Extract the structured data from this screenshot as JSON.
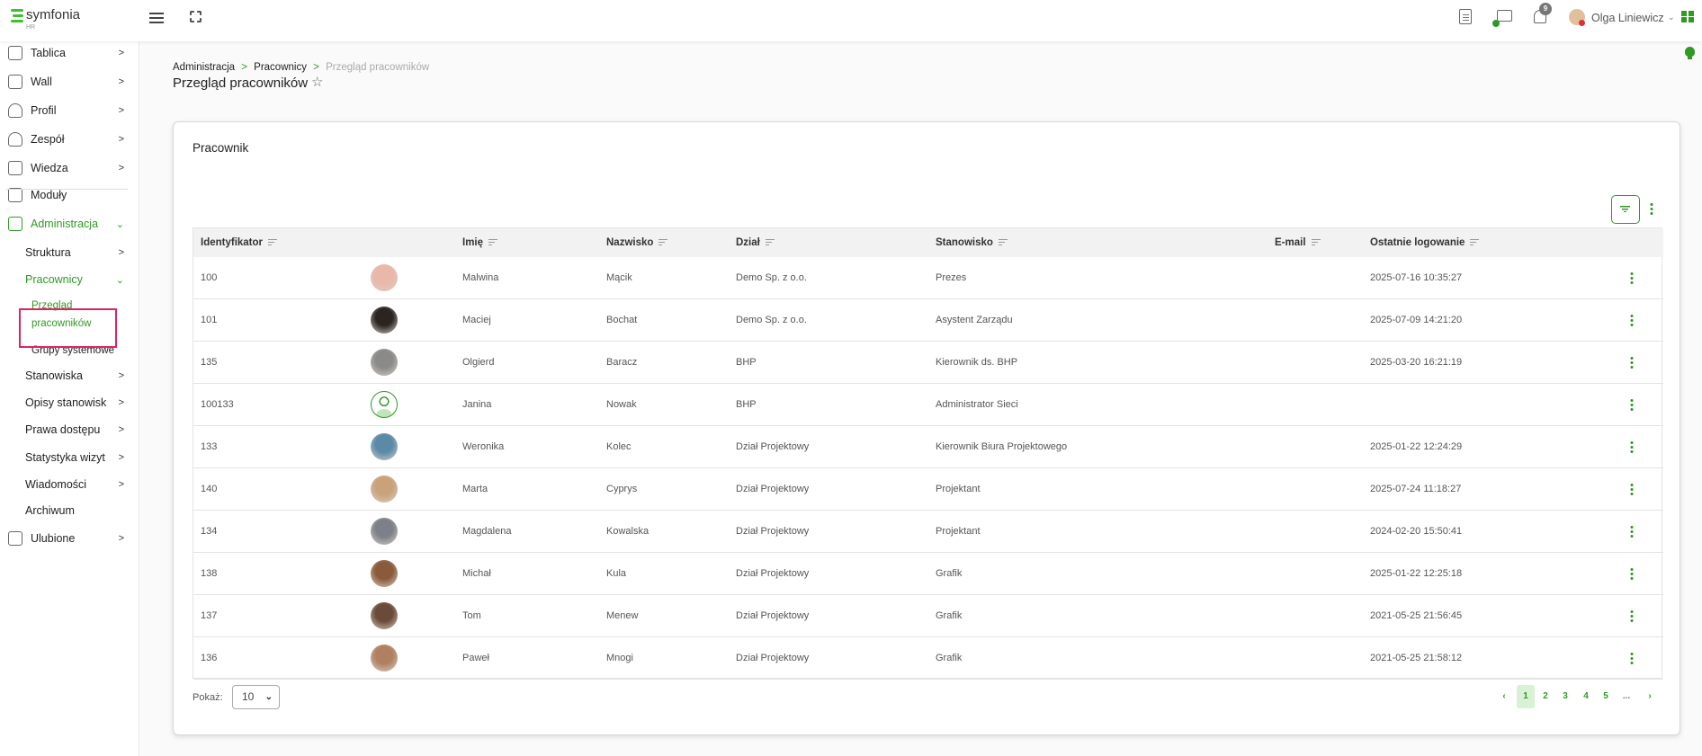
{
  "header": {
    "logo_text": "symfonia",
    "logo_sub": "HR",
    "notifications_count": "9",
    "user_name": "Olga Liniewicz",
    "brand_color": "#2e9a22"
  },
  "sidebar": {
    "items": [
      {
        "label": "Tablica",
        "icon": "monitor-icon"
      },
      {
        "label": "Wall",
        "icon": "chat-icon"
      },
      {
        "label": "Profil",
        "icon": "user-icon"
      },
      {
        "label": "Zespół",
        "icon": "team-icon"
      },
      {
        "label": "Wiedza",
        "icon": "document-icon"
      },
      {
        "label": "Moduły",
        "icon": "wrench-icon"
      },
      {
        "label": "Administracja",
        "icon": "wrench-icon"
      },
      {
        "label": "Struktura"
      },
      {
        "label": "Pracownicy"
      },
      {
        "label": "Przegląd"
      },
      {
        "label": "pracowników"
      },
      {
        "label": "Grupy systemowe"
      },
      {
        "label": "Stanowiska"
      },
      {
        "label": "Opisy stanowisk"
      },
      {
        "label": "Prawa dostępu"
      },
      {
        "label": "Statystyka wizyt"
      },
      {
        "label": "Wiadomości"
      },
      {
        "label": "Archiwum"
      },
      {
        "label": "Ulubione",
        "icon": "star-icon"
      }
    ]
  },
  "breadcrumb": [
    "Administracja",
    "Pracownicy",
    "Przegląd pracowników"
  ],
  "breadcrumb_sep": ">",
  "page_title": "Przegląd pracowników",
  "card": {
    "title": "Pracownik",
    "columns": [
      "Identyfikator",
      "",
      "Imię",
      "Nazwisko",
      "Dział",
      "Stanowisko",
      "E-mail",
      "Ostatnie logowanie"
    ],
    "rows": [
      {
        "id": "100",
        "first": "Malwina",
        "last": "Mącik",
        "dept": "Demo Sp. z o.o.",
        "position": "Prezes",
        "email": "",
        "last_login": "2025-07-16 10:35:27",
        "avatar": "#e9b8a8"
      },
      {
        "id": "101",
        "first": "Maciej",
        "last": "Bochat",
        "dept": "Demo Sp. z o.o.",
        "position": "Asystent Zarządu",
        "email": "",
        "last_login": "2025-07-09 14:21:20",
        "avatar": "#2b2420"
      },
      {
        "id": "135",
        "first": "Olgierd",
        "last": "Baracz",
        "dept": "BHP",
        "position": "Kierownik ds. BHP",
        "email": "",
        "last_login": "2025-03-20 16:21:19",
        "avatar": "#8a8a8a"
      },
      {
        "id": "100133",
        "first": "Janina",
        "last": "Nowak",
        "dept": "BHP",
        "position": "Administrator Sieci",
        "email": "",
        "last_login": "",
        "avatar": "placeholder"
      },
      {
        "id": "133",
        "first": "Weronika",
        "last": "Kolec",
        "dept": "Dział Projektowy",
        "position": "Kierownik Biura Projektowego",
        "email": "",
        "last_login": "2025-01-22 12:24:29",
        "avatar": "#5a8aa8"
      },
      {
        "id": "140",
        "first": "Marta",
        "last": "Cyprys",
        "dept": "Dział Projektowy",
        "position": "Projektant",
        "email": "",
        "last_login": "2025-07-24 11:18:27",
        "avatar": "#c9a27a"
      },
      {
        "id": "134",
        "first": "Magdalena",
        "last": "Kowalska",
        "dept": "Dział Projektowy",
        "position": "Projektant",
        "email": "",
        "last_login": "2024-02-20 15:50:41",
        "avatar": "#7d8088"
      },
      {
        "id": "138",
        "first": "Michał",
        "last": "Kula",
        "dept": "Dział Projektowy",
        "position": "Grafik",
        "email": "",
        "last_login": "2025-01-22 12:25:18",
        "avatar": "#8a5a3a"
      },
      {
        "id": "137",
        "first": "Tom",
        "last": "Menew",
        "dept": "Dział Projektowy",
        "position": "Grafik",
        "email": "",
        "last_login": "2021-05-25 21:56:45",
        "avatar": "#6a4a38"
      },
      {
        "id": "136",
        "first": "Paweł",
        "last": "Mnogi",
        "dept": "Dział Projektowy",
        "position": "Grafik",
        "email": "",
        "last_login": "2021-05-25 21:58:12",
        "avatar": "#b08060"
      }
    ]
  },
  "footer": {
    "show_label": "Pokaż:",
    "page_size": "10",
    "pages": [
      "1",
      "2",
      "3",
      "4",
      "5",
      "..."
    ],
    "current_page": "1",
    "prev": "‹",
    "next": "›"
  }
}
